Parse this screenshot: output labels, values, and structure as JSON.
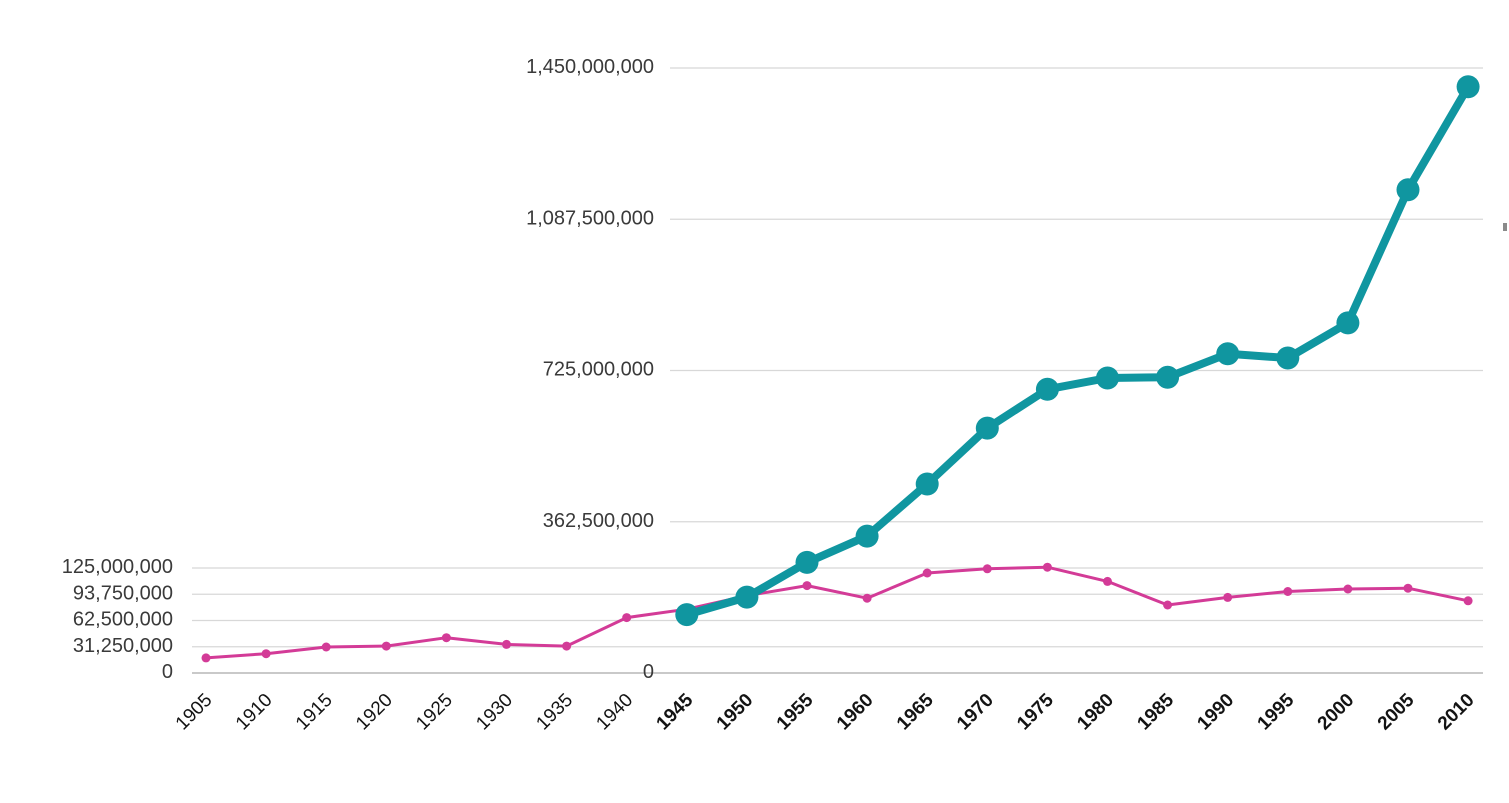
{
  "chart_data": {
    "type": "line",
    "title": "",
    "legend": "none",
    "grid": true,
    "background": "#ffffff",
    "x_ticks": [
      {
        "label": "1905",
        "year": 1905,
        "bold": false
      },
      {
        "label": "1910",
        "year": 1910,
        "bold": false
      },
      {
        "label": "1915",
        "year": 1915,
        "bold": false
      },
      {
        "label": "1920",
        "year": 1920,
        "bold": false
      },
      {
        "label": "1925",
        "year": 1925,
        "bold": false
      },
      {
        "label": "1930",
        "year": 1930,
        "bold": false
      },
      {
        "label": "1935",
        "year": 1935,
        "bold": false
      },
      {
        "label": "1940",
        "year": 1940,
        "bold": false
      },
      {
        "label": "1945",
        "year": 1945,
        "bold": true
      },
      {
        "label": "1950",
        "year": 1950,
        "bold": true
      },
      {
        "label": "1955",
        "year": 1955,
        "bold": true
      },
      {
        "label": "1960",
        "year": 1960,
        "bold": true
      },
      {
        "label": "1965",
        "year": 1965,
        "bold": true
      },
      {
        "label": "1970",
        "year": 1970,
        "bold": true
      },
      {
        "label": "1975",
        "year": 1975,
        "bold": true
      },
      {
        "label": "1980",
        "year": 1980,
        "bold": true
      },
      {
        "label": "1985",
        "year": 1985,
        "bold": true
      },
      {
        "label": "1990",
        "year": 1990,
        "bold": true
      },
      {
        "label": "1995",
        "year": 1995,
        "bold": true
      },
      {
        "label": "2000",
        "year": 2000,
        "bold": true
      },
      {
        "label": "2005",
        "year": 2005,
        "bold": true
      },
      {
        "label": "2010",
        "year": 2010,
        "bold": true
      }
    ],
    "left_axis": {
      "min": 0,
      "max": 125000000,
      "ticks": [
        {
          "label": "125,000,000",
          "value": 125000000
        },
        {
          "label": "93,750,000",
          "value": 93750000
        },
        {
          "label": "62,500,000",
          "value": 62500000
        },
        {
          "label": "31,250,000",
          "value": 31250000
        },
        {
          "label": "0",
          "value": 0
        }
      ]
    },
    "center_axis": {
      "min": 0,
      "max": 1450000000,
      "ticks": [
        {
          "label": "1,450,000,000",
          "value": 1450000000
        },
        {
          "label": "1,087,500,000",
          "value": 1087500000
        },
        {
          "label": "725,000,000",
          "value": 725000000
        },
        {
          "label": "362,500,000",
          "value": 362500000
        },
        {
          "label": "0",
          "value": 0
        }
      ]
    },
    "series": [
      {
        "name": "pink-series",
        "color": "#d33b97",
        "axis": "left",
        "line_width": 3,
        "dot_radius": 4.5,
        "values": [
          18000000,
          23000000,
          31000000,
          32000000,
          42000000,
          34000000,
          32000000,
          66000000,
          76000000,
          92000000,
          104000000,
          89000000,
          119000000,
          124000000,
          126000000,
          109000000,
          81000000,
          90000000,
          97000000,
          100000000,
          101000000,
          86000000
        ]
      },
      {
        "name": "teal-series",
        "color": "#1096a0",
        "axis": "center",
        "line_width": 8,
        "dot_radius": 11.5,
        "values": [
          null,
          null,
          null,
          null,
          null,
          null,
          null,
          null,
          140000000,
          182000000,
          265000000,
          328000000,
          453000000,
          587000000,
          680000000,
          707000000,
          709000000,
          765000000,
          755000000,
          839000000,
          1158000000,
          1405000000
        ]
      }
    ],
    "colors": {
      "gridline": "#d8d8d8",
      "zero_line": "#c9c9c9",
      "y_label_text": "#3a3a3a",
      "x_label_text": "#141414"
    }
  }
}
